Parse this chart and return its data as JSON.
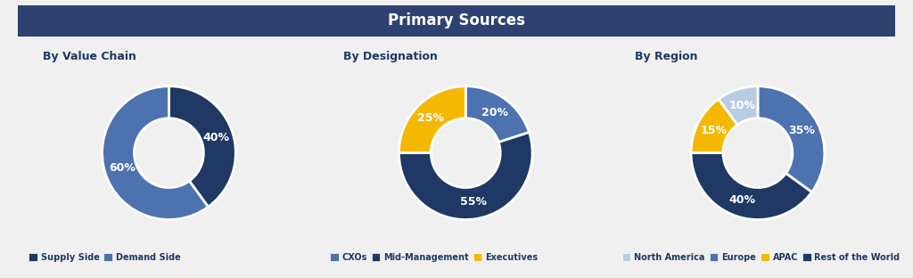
{
  "title": "Primary Sources",
  "title_bg_color": "#2e4271",
  "title_text_color": "#ffffff",
  "bg_color": "#f0f0f0",
  "chart_bg": "#f0f0f0",
  "charts": [
    {
      "label": "By Value Chain",
      "slices": [
        40,
        60
      ],
      "colors": [
        "#1f3864",
        "#4c72b0"
      ],
      "pct_labels": [
        "40%",
        "60%"
      ]
    },
    {
      "label": "By Designation",
      "slices": [
        20,
        55,
        25
      ],
      "colors": [
        "#4c72b0",
        "#1f3864",
        "#f5b800"
      ],
      "pct_labels": [
        "20%",
        "55%",
        "25%"
      ]
    },
    {
      "label": "By Region",
      "slices": [
        35,
        40,
        15,
        10
      ],
      "colors": [
        "#4c72b0",
        "#1f3864",
        "#f5b800",
        "#b8cde4"
      ],
      "pct_labels": [
        "35%",
        "40%",
        "15%",
        "10%"
      ]
    }
  ],
  "legends": [
    {
      "entries": [
        "Supply Side",
        "Demand Side"
      ],
      "colors": [
        "#1f3864",
        "#4c72b0"
      ]
    },
    {
      "entries": [
        "CXOs",
        "Mid-Management",
        "Executives"
      ],
      "colors": [
        "#4c72b0",
        "#1f3864",
        "#f5b800"
      ]
    },
    {
      "entries": [
        "North America",
        "Europe",
        "APAC",
        "Rest of the World"
      ],
      "colors": [
        "#b8cde4",
        "#4c72b0",
        "#f5b800",
        "#1f3864"
      ]
    }
  ],
  "subtitle_color": "#1f3864",
  "label_fontsize": 9,
  "pct_fontsize": 9,
  "title_fontsize": 12,
  "subtitle_fontsize": 9,
  "legend_fontsize": 7,
  "donut_width": 0.48
}
